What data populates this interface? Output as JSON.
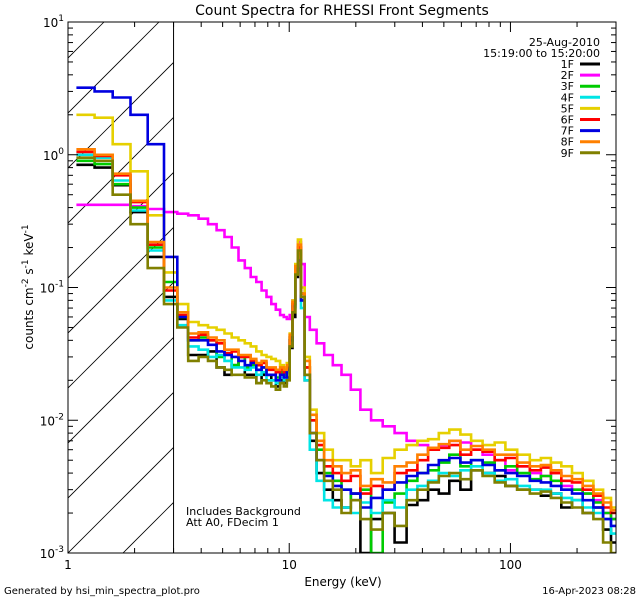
{
  "chart_data": {
    "type": "line",
    "title": "Count Spectra for RHESSI Front Segments",
    "xlabel": "Energy (keV)",
    "ylabel_parts": {
      "base": "counts cm",
      "exp1": "-2",
      "mid": " s",
      "exp2": "-1",
      "tail": " keV",
      "exp3": "-1"
    },
    "x_scale": "log",
    "y_scale": "log",
    "xlim": [
      1,
      300
    ],
    "ylim": [
      0.001,
      10
    ],
    "x_ticks": [
      {
        "value": 1,
        "label": "1"
      },
      {
        "value": 10,
        "label": "10"
      },
      {
        "value": 100,
        "label": "100"
      }
    ],
    "y_ticks": [
      {
        "value": 10,
        "base": "10",
        "exp": "1"
      },
      {
        "value": 1,
        "base": "10",
        "exp": "0"
      },
      {
        "value": 0.1,
        "base": "10",
        "exp": "-1"
      },
      {
        "value": 0.01,
        "base": "10",
        "exp": "-2"
      },
      {
        "value": 0.001,
        "base": "10",
        "exp": "-3"
      }
    ],
    "legend": {
      "position": "top-right",
      "date": "25-Aug-2010",
      "time_range": "15:19:00 to 15:20:00"
    },
    "annotation": {
      "line1": "Includes Background",
      "line2": "Att A0, FDecim 1"
    },
    "hatched_region": {
      "x_min": 1,
      "x_max": 3.0
    },
    "series": [
      {
        "name": "1F",
        "color": "#000000",
        "values": [
          0.84,
          0.8,
          0.59,
          0.37,
          0.17,
          0.085,
          0.058,
          0.031,
          0.031,
          0.033,
          0.025,
          0.022,
          0.026,
          0.03,
          0.022,
          0.022,
          0.019,
          0.022,
          0.022,
          0.02,
          0.018,
          0.02,
          0.019,
          0.021,
          0.035,
          0.06,
          0.12,
          0.2,
          0.09,
          0.02,
          0.007,
          0.004,
          0.003,
          0.0025,
          0.0022,
          0.0028,
          0.001,
          0.0018,
          0.002,
          0.0012,
          0.0023,
          0.0025,
          0.003,
          0.0028,
          0.0035,
          0.003,
          0.0042,
          0.004,
          0.0038,
          0.0032,
          0.003,
          0.003,
          0.0027,
          0.0028,
          0.0022,
          0.0025,
          0.002,
          0.0022,
          0.0015,
          0.0012
        ]
      },
      {
        "name": "2F",
        "color": "#ff00ff",
        "values": [
          0.42,
          0.42,
          0.42,
          0.41,
          0.39,
          0.37,
          0.36,
          0.35,
          0.33,
          0.3,
          0.27,
          0.24,
          0.2,
          0.16,
          0.14,
          0.12,
          0.11,
          0.095,
          0.085,
          0.075,
          0.068,
          0.062,
          0.06,
          0.058,
          0.062,
          0.08,
          0.13,
          0.22,
          0.15,
          0.06,
          0.048,
          0.038,
          0.031,
          0.026,
          0.022,
          0.017,
          0.012,
          0.01,
          0.009,
          0.008,
          0.007,
          0.0065,
          0.006,
          0.0065,
          0.007,
          0.0068,
          0.006,
          0.0055,
          0.005,
          0.0042,
          0.0045,
          0.004,
          0.0038,
          0.004,
          0.0032,
          0.003,
          0.0028,
          0.0025,
          0.002,
          0.0018
        ]
      },
      {
        "name": "3F",
        "color": "#00cc00",
        "values": [
          0.9,
          0.85,
          0.6,
          0.4,
          0.2,
          0.11,
          0.06,
          0.04,
          0.042,
          0.04,
          0.03,
          0.032,
          0.026,
          0.03,
          0.025,
          0.026,
          0.024,
          0.025,
          0.022,
          0.022,
          0.021,
          0.023,
          0.022,
          0.024,
          0.04,
          0.07,
          0.13,
          0.18,
          0.08,
          0.025,
          0.01,
          0.006,
          0.004,
          0.0035,
          0.003,
          0.0025,
          0.003,
          0.001,
          0.0024,
          0.0028,
          0.0035,
          0.004,
          0.0042,
          0.0048,
          0.0055,
          0.0045,
          0.005,
          0.0048,
          0.0042,
          0.0045,
          0.004,
          0.0036,
          0.0038,
          0.0035,
          0.003,
          0.003,
          0.0028,
          0.0024,
          0.002,
          0.0018
        ]
      },
      {
        "name": "4F",
        "color": "#00e5e5",
        "values": [
          1.0,
          0.95,
          0.64,
          0.38,
          0.19,
          0.08,
          0.052,
          0.036,
          0.034,
          0.03,
          0.031,
          0.028,
          0.025,
          0.025,
          0.024,
          0.025,
          0.022,
          0.023,
          0.02,
          0.02,
          0.019,
          0.021,
          0.02,
          0.023,
          0.042,
          0.075,
          0.14,
          0.17,
          0.07,
          0.02,
          0.006,
          0.0035,
          0.0025,
          0.0022,
          0.0022,
          0.002,
          0.0024,
          0.002,
          0.0025,
          0.0022,
          0.003,
          0.0032,
          0.0035,
          0.004,
          0.0038,
          0.0042,
          0.0045,
          0.004,
          0.0035,
          0.0036,
          0.0032,
          0.003,
          0.003,
          0.0028,
          0.0026,
          0.0025,
          0.0022,
          0.002,
          0.0018,
          0.0014
        ]
      },
      {
        "name": "5F",
        "color": "#e6d000",
        "values": [
          2.0,
          1.9,
          1.2,
          0.75,
          0.35,
          0.13,
          0.075,
          0.055,
          0.052,
          0.05,
          0.048,
          0.045,
          0.042,
          0.04,
          0.038,
          0.036,
          0.033,
          0.031,
          0.03,
          0.029,
          0.028,
          0.026,
          0.025,
          0.027,
          0.045,
          0.08,
          0.15,
          0.23,
          0.1,
          0.03,
          0.012,
          0.008,
          0.006,
          0.005,
          0.005,
          0.0045,
          0.005,
          0.004,
          0.0052,
          0.006,
          0.0065,
          0.007,
          0.0072,
          0.008,
          0.0085,
          0.0078,
          0.007,
          0.0065,
          0.0068,
          0.006,
          0.0055,
          0.005,
          0.0052,
          0.0048,
          0.0045,
          0.004,
          0.0035,
          0.003,
          0.0026,
          0.0022
        ]
      },
      {
        "name": "6F",
        "color": "#ff0000",
        "values": [
          1.05,
          0.98,
          0.7,
          0.44,
          0.21,
          0.095,
          0.062,
          0.042,
          0.044,
          0.04,
          0.038,
          0.032,
          0.033,
          0.03,
          0.03,
          0.028,
          0.026,
          0.027,
          0.024,
          0.024,
          0.023,
          0.024,
          0.023,
          0.025,
          0.042,
          0.075,
          0.14,
          0.2,
          0.085,
          0.025,
          0.01,
          0.0065,
          0.0045,
          0.004,
          0.0035,
          0.0038,
          0.0028,
          0.0032,
          0.003,
          0.004,
          0.0042,
          0.005,
          0.006,
          0.0062,
          0.0065,
          0.0055,
          0.006,
          0.0058,
          0.005,
          0.0052,
          0.0045,
          0.0042,
          0.0044,
          0.004,
          0.0035,
          0.0034,
          0.003,
          0.0027,
          0.0022,
          0.002
        ]
      },
      {
        "name": "7F",
        "color": "#0000e0",
        "values": [
          3.2,
          3.0,
          2.7,
          2.0,
          1.2,
          0.17,
          0.06,
          0.04,
          0.04,
          0.037,
          0.033,
          0.031,
          0.03,
          0.028,
          0.026,
          0.027,
          0.024,
          0.025,
          0.022,
          0.022,
          0.02,
          0.022,
          0.021,
          0.024,
          0.04,
          0.072,
          0.135,
          0.16,
          0.08,
          0.022,
          0.008,
          0.005,
          0.0038,
          0.0032,
          0.003,
          0.0028,
          0.0022,
          0.0026,
          0.003,
          0.0034,
          0.0038,
          0.004,
          0.0046,
          0.005,
          0.0052,
          0.0048,
          0.005,
          0.0046,
          0.0042,
          0.004,
          0.0038,
          0.0035,
          0.0034,
          0.0032,
          0.003,
          0.0028,
          0.0025,
          0.0022,
          0.0018,
          0.0016
        ]
      },
      {
        "name": "8F",
        "color": "#ff8000",
        "values": [
          1.1,
          1.0,
          0.72,
          0.45,
          0.22,
          0.1,
          0.065,
          0.045,
          0.046,
          0.042,
          0.04,
          0.034,
          0.034,
          0.031,
          0.031,
          0.029,
          0.027,
          0.028,
          0.025,
          0.025,
          0.024,
          0.025,
          0.024,
          0.026,
          0.044,
          0.078,
          0.145,
          0.21,
          0.09,
          0.028,
          0.011,
          0.007,
          0.005,
          0.0045,
          0.004,
          0.0042,
          0.0032,
          0.0036,
          0.0034,
          0.0045,
          0.0048,
          0.0055,
          0.0062,
          0.0066,
          0.007,
          0.006,
          0.0064,
          0.006,
          0.0055,
          0.0055,
          0.0048,
          0.0045,
          0.0046,
          0.0042,
          0.0038,
          0.0036,
          0.0032,
          0.0028,
          0.0024,
          0.0021
        ]
      },
      {
        "name": "9F",
        "color": "#808000",
        "values": [
          0.95,
          0.9,
          0.5,
          0.3,
          0.14,
          0.075,
          0.05,
          0.028,
          0.03,
          0.028,
          0.025,
          0.024,
          0.022,
          0.022,
          0.021,
          0.021,
          0.019,
          0.02,
          0.019,
          0.018,
          0.017,
          0.019,
          0.018,
          0.02,
          0.036,
          0.065,
          0.125,
          0.19,
          0.085,
          0.022,
          0.008,
          0.005,
          0.0035,
          0.003,
          0.002,
          0.0025,
          0.0018,
          0.0015,
          0.002,
          0.0016,
          0.0025,
          0.003,
          0.0034,
          0.0038,
          0.004,
          0.0036,
          0.0042,
          0.0038,
          0.0034,
          0.0032,
          0.003,
          0.0028,
          0.0029,
          0.0026,
          0.0024,
          0.0022,
          0.002,
          0.0018,
          0.0012,
          0.001
        ]
      }
    ],
    "x": [
      1.2,
      1.45,
      1.75,
      2.1,
      2.5,
      2.95,
      3.3,
      3.7,
      4.1,
      4.5,
      4.9,
      5.3,
      5.7,
      6.1,
      6.5,
      6.9,
      7.3,
      7.7,
      8.1,
      8.5,
      8.9,
      9.3,
      9.6,
      9.9,
      10.2,
      10.5,
      10.8,
      11.1,
      11.5,
      12.0,
      12.8,
      13.8,
      15.0,
      16.5,
      18.0,
      20.0,
      22.0,
      25.0,
      28.0,
      32.0,
      36.0,
      40.0,
      45.0,
      50.0,
      56.0,
      63.0,
      70.0,
      80.0,
      90.0,
      100.0,
      115.0,
      130.0,
      145.0,
      160.0,
      180.0,
      200.0,
      225.0,
      250.0,
      275.0,
      295.0
    ]
  },
  "footer": {
    "generator": "Generated by hsi_min_spectra_plot.pro",
    "timestamp": "16-Apr-2023 08:28"
  }
}
